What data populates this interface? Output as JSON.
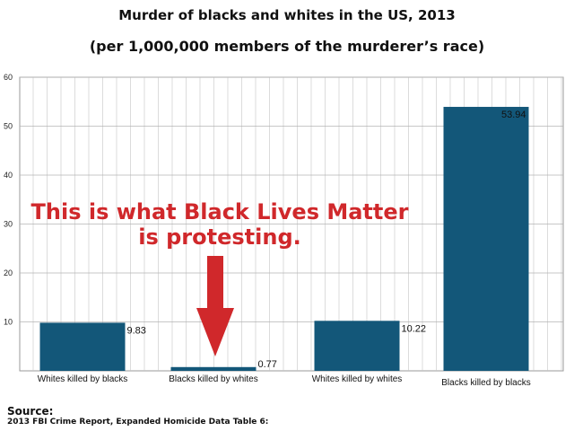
{
  "title": "Murder of blacks and whites in the US, 2013",
  "subtitle": "(per 1,000,000 members of the murderer’s race)",
  "annotation": {
    "line1": "This is what Black Lives Matter",
    "line2": "is protesting.",
    "color": "#d0282b"
  },
  "source": {
    "label": "Source:",
    "text": "2013 FBI Crime Report, Expanded Homicide Data Table 6:"
  },
  "chart_data": {
    "type": "bar",
    "categories": [
      "Whites killed by blacks",
      "Blacks killed by whites",
      "Whites killed by whites",
      "Blacks killed by blacks"
    ],
    "values": [
      9.83,
      0.77,
      10.22,
      53.94
    ],
    "value_labels": [
      "9.83",
      "0.77",
      "10.22",
      "53.94"
    ],
    "ylim": [
      0,
      60
    ],
    "yticks": [
      10,
      20,
      30,
      40,
      50,
      60
    ],
    "grid": true,
    "bar_color": "#135779",
    "xlabel": "",
    "ylabel": ""
  }
}
